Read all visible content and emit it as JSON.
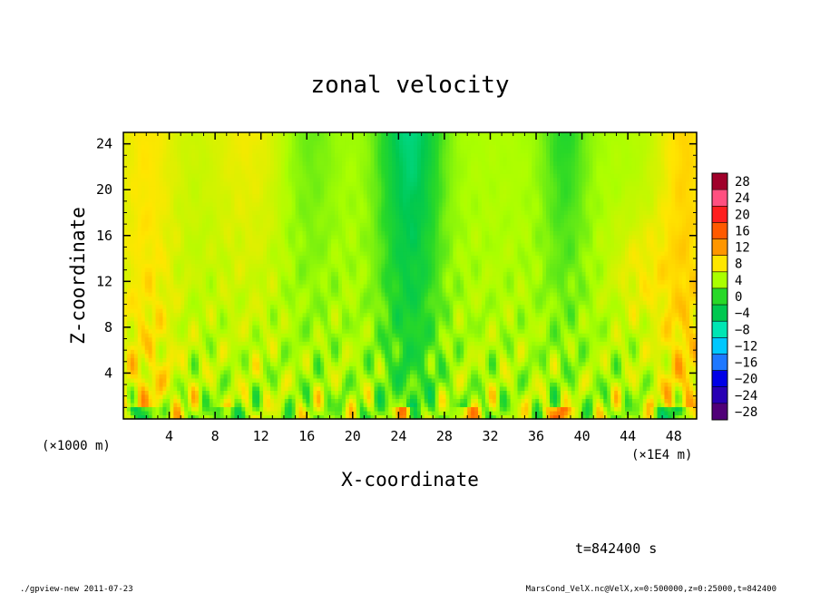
{
  "chart_data": {
    "type": "heatmap",
    "title": "zonal velocity",
    "xlabel": "X-coordinate",
    "ylabel": "Z-coordinate",
    "x_unit_left": "(×1000 m)",
    "x_unit_right": "(×1E4 m)",
    "xlim": [
      0,
      50
    ],
    "ylim": [
      0,
      25
    ],
    "x_ticks": [
      "4",
      "8",
      "12",
      "16",
      "20",
      "24",
      "28",
      "32",
      "36",
      "40",
      "44",
      "48"
    ],
    "y_ticks": [
      "4",
      "8",
      "12",
      "16",
      "20",
      "24"
    ],
    "colorbar": {
      "levels": [
        "28",
        "24",
        "20",
        "16",
        "12",
        "8",
        "4",
        "0",
        "−4",
        "−8",
        "−12",
        "−16",
        "−20",
        "−24",
        "−28"
      ],
      "colors": [
        "#a0002a",
        "#ff5080",
        "#ff1e1e",
        "#ff5a00",
        "#ff9600",
        "#ffe600",
        "#aaff00",
        "#28d828",
        "#00c850",
        "#00e6b4",
        "#00c8ff",
        "#1e78ff",
        "#0000e6",
        "#2800b4",
        "#500078"
      ],
      "range": [
        -30,
        30
      ]
    },
    "time_label": "t=842400 s",
    "footer_left": "./gpview-new   2011-07-23",
    "footer_right": "MarsCond_VelX.nc@VelX,x=0:500000,z=0:25000,t=842400"
  }
}
